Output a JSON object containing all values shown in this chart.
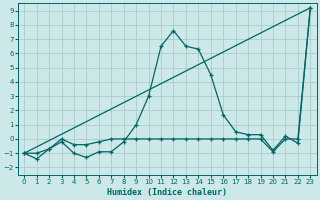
{
  "xlabel": "Humidex (Indice chaleur)",
  "background_color": "#cce8e8",
  "grid_color": "#aacccc",
  "line_color": "#006666",
  "xlim": [
    -0.5,
    23.5
  ],
  "ylim": [
    -2.5,
    9.5
  ],
  "xticks": [
    0,
    1,
    2,
    3,
    4,
    5,
    6,
    7,
    8,
    9,
    10,
    11,
    12,
    13,
    14,
    15,
    16,
    17,
    18,
    19,
    20,
    21,
    22,
    23
  ],
  "yticks": [
    -2,
    -1,
    0,
    1,
    2,
    3,
    4,
    5,
    6,
    7,
    8,
    9
  ],
  "line1_x": [
    0,
    1,
    2,
    3,
    4,
    5,
    6,
    7,
    8,
    9,
    10,
    11,
    12,
    13,
    14,
    15,
    16,
    17,
    18,
    19,
    20,
    21,
    22,
    23
  ],
  "line1_y": [
    -1.0,
    -1.4,
    -0.7,
    -0.2,
    -1.0,
    -1.3,
    -0.9,
    -0.9,
    -0.2,
    1.0,
    3.0,
    6.5,
    7.6,
    6.5,
    6.3,
    4.5,
    1.7,
    0.5,
    0.3,
    0.3,
    -0.8,
    0.2,
    -0.3,
    9.2
  ],
  "line2_x": [
    0,
    1,
    2,
    3,
    4,
    5,
    6,
    7,
    8,
    9,
    10,
    11,
    12,
    13,
    14,
    15,
    16,
    17,
    18,
    19,
    20,
    21,
    22,
    23
  ],
  "line2_y": [
    -1.0,
    -1.0,
    -0.7,
    0.0,
    -0.4,
    -0.4,
    -0.2,
    0.0,
    0.0,
    0.0,
    0.0,
    0.0,
    0.0,
    0.0,
    0.0,
    0.0,
    0.0,
    0.0,
    0.0,
    0.0,
    -0.9,
    0.0,
    0.0,
    9.2
  ],
  "line3_x": [
    0,
    23
  ],
  "line3_y": [
    -1.0,
    9.2
  ]
}
